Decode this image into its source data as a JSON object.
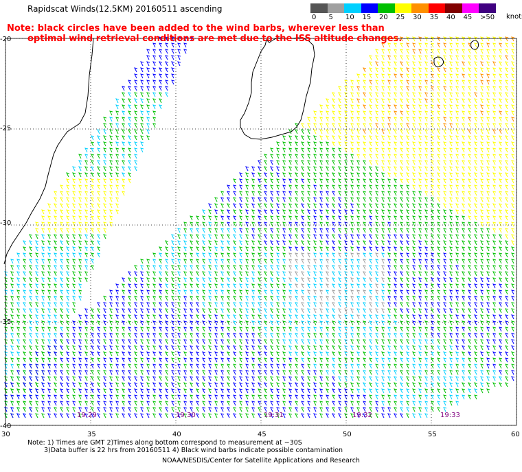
{
  "header": {
    "title": "Rapidscat Winds(12.5KM) 20160511 ascending"
  },
  "note": {
    "line1": "Note: black circles have been added to the wind barbs, wherever less than",
    "line2": "optimal wind retrieval conditions are met due to the ISS altitude changes."
  },
  "legend": {
    "labels": [
      "0",
      "5",
      "10",
      "15",
      "20",
      "25",
      "30",
      "35",
      "40",
      "45",
      ">50"
    ],
    "colors": [
      "#555555",
      "#a0a0a0",
      "#00d0ff",
      "#0000ff",
      "#00c000",
      "#ffff00",
      "#ff9000",
      "#ff0000",
      "#800000",
      "#ff00ff",
      "#400080"
    ],
    "unit": "knots"
  },
  "axes": {
    "lat_labels": [
      "-20",
      "-25",
      "-30",
      "-35",
      "-40"
    ],
    "lon_labels": [
      "30",
      "35",
      "40",
      "45",
      "50",
      "55",
      "60"
    ]
  },
  "times": [
    "19:29",
    "19:30",
    "19:31",
    "19:32",
    "19:33"
  ],
  "footer": {
    "line1": "Note: 1) Times are GMT 2)Times along bottom correspond to measurement at ~30S",
    "line2": "3)Data buffer is 22 hrs from 20160511 4) Black wind barbs indicate possible contamination",
    "line3": "NOAA/NESDIS/Center for Satellite Applications and Research"
  },
  "colors": {
    "grid": "#000000",
    "coast": "#000000"
  }
}
